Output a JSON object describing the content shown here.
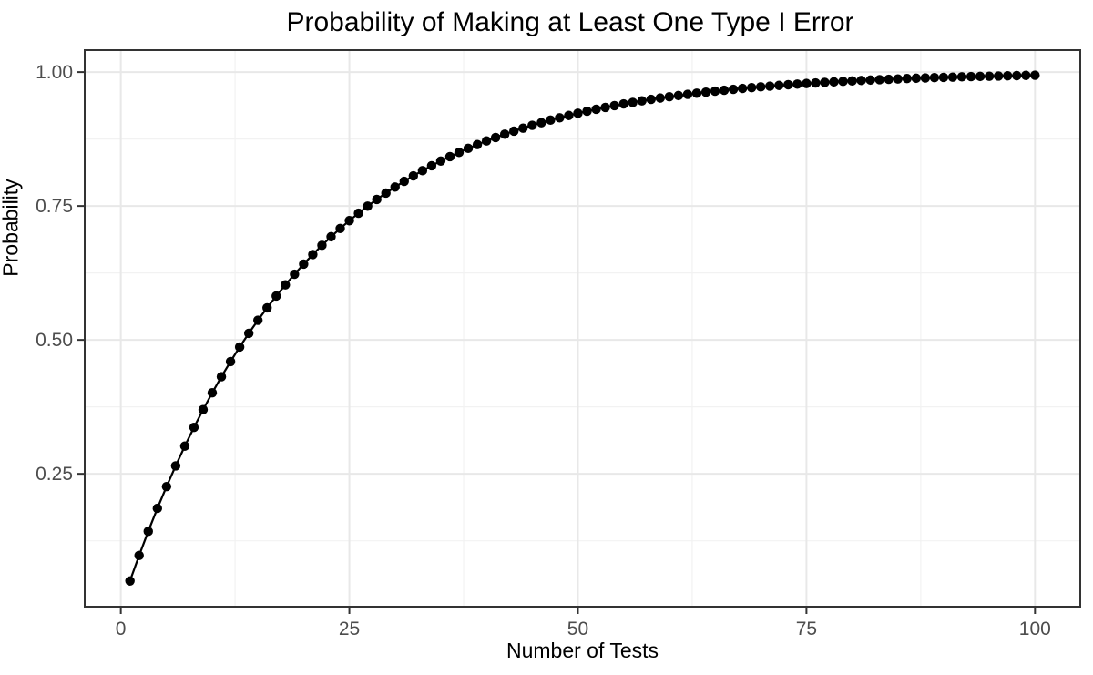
{
  "chart_data": {
    "type": "line",
    "title": "Probability of Making at Least One Type I Error",
    "xlabel": "Number of Tests",
    "ylabel": "Probability",
    "x": [
      1,
      2,
      3,
      4,
      5,
      6,
      7,
      8,
      9,
      10,
      11,
      12,
      13,
      14,
      15,
      16,
      17,
      18,
      19,
      20,
      21,
      22,
      23,
      24,
      25,
      26,
      27,
      28,
      29,
      30,
      31,
      32,
      33,
      34,
      35,
      36,
      37,
      38,
      39,
      40,
      41,
      42,
      43,
      44,
      45,
      46,
      47,
      48,
      49,
      50,
      51,
      52,
      53,
      54,
      55,
      56,
      57,
      58,
      59,
      60,
      61,
      62,
      63,
      64,
      65,
      66,
      67,
      68,
      69,
      70,
      71,
      72,
      73,
      74,
      75,
      76,
      77,
      78,
      79,
      80,
      81,
      82,
      83,
      84,
      85,
      86,
      87,
      88,
      89,
      90,
      91,
      92,
      93,
      94,
      95,
      96,
      97,
      98,
      99,
      100
    ],
    "y": [
      0.05,
      0.0975,
      0.1426,
      0.1855,
      0.2262,
      0.2649,
      0.3017,
      0.3366,
      0.3698,
      0.4013,
      0.4312,
      0.4596,
      0.4867,
      0.5123,
      0.5367,
      0.5599,
      0.5819,
      0.6028,
      0.6226,
      0.6415,
      0.6594,
      0.6765,
      0.6926,
      0.708,
      0.7226,
      0.7365,
      0.7497,
      0.7622,
      0.7741,
      0.7854,
      0.7961,
      0.8063,
      0.816,
      0.8252,
      0.8339,
      0.8422,
      0.8501,
      0.8576,
      0.8647,
      0.8715,
      0.8779,
      0.884,
      0.8898,
      0.8953,
      0.9006,
      0.9055,
      0.9103,
      0.9147,
      0.919,
      0.9231,
      0.9269,
      0.9306,
      0.934,
      0.9373,
      0.9405,
      0.9434,
      0.9463,
      0.949,
      0.9515,
      0.9539,
      0.9562,
      0.9584,
      0.9605,
      0.9625,
      0.9644,
      0.9661,
      0.9678,
      0.9694,
      0.971,
      0.9724,
      0.9738,
      0.9751,
      0.9764,
      0.9775,
      0.9787,
      0.9797,
      0.9807,
      0.9817,
      0.9826,
      0.9835,
      0.9843,
      0.9851,
      0.9858,
      0.9865,
      0.9872,
      0.9879,
      0.9885,
      0.989,
      0.9896,
      0.9901,
      0.9906,
      0.9911,
      0.9915,
      0.9919,
      0.9923,
      0.9927,
      0.9931,
      0.9934,
      0.9938,
      0.9941
    ],
    "xlim": [
      -3.95,
      104.95
    ],
    "ylim": [
      0.002,
      1.041
    ],
    "x_major_ticks": [
      0,
      25,
      50,
      75,
      100
    ],
    "x_tick_labels": [
      "0",
      "25",
      "50",
      "75",
      "100"
    ],
    "x_minor_ticks": [
      12.5,
      37.5,
      62.5,
      87.5
    ],
    "y_major_ticks": [
      0.25,
      0.5,
      0.75,
      1.0
    ],
    "y_tick_labels": [
      "0.25",
      "0.50",
      "0.75",
      "1.00"
    ],
    "y_minor_ticks": [
      0.125,
      0.375,
      0.625,
      0.875
    ],
    "grid": true,
    "legend": "none",
    "colors": {
      "point": "#000000",
      "line": "#000000",
      "grid_major": "#e8e8e8",
      "grid_minor": "#f2f2f2",
      "panel_border": "#333333",
      "tick_mark": "#333333",
      "tick_label": "#4d4d4d",
      "title": "#000000",
      "axis_title": "#000000",
      "panel_background": "#ffffff"
    }
  }
}
